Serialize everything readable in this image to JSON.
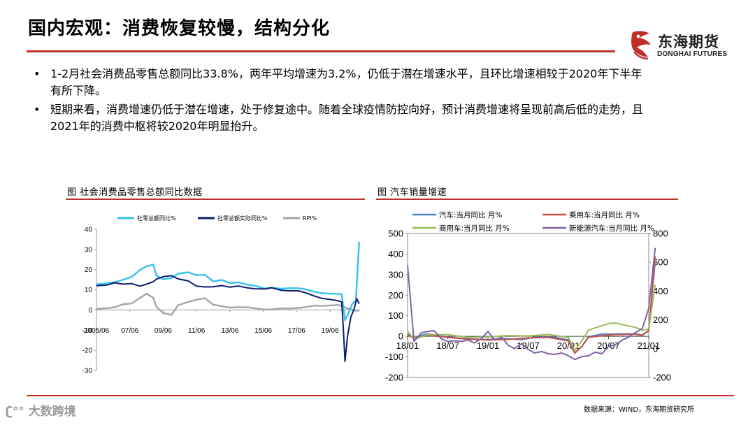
{
  "header": {
    "title": "国内宏观：消费恢复较慢，结构分化",
    "logo_cn": "东海期货",
    "logo_en": "DONGHAI FUTURES"
  },
  "bullets": [
    "1-2月社会消费品零售总额同比33.8%，两年平均增速为3.2%，仍低于潜在增速水平，且环比增速相较于2020年下半年有所下降。",
    "短期来看，消费增速仍低于潜在增速，处于修复途中。随着全球疫情防控向好，预计消费增速将呈现前高后低的走势，且2021年的消费中枢将较2020年明显抬升。"
  ],
  "footer": {
    "source": "数据来源：WIND，东海期货研究所",
    "watermark": "大数跨境"
  },
  "colors": {
    "accent_red": "#c0302a",
    "retail_nominal": "#33c2f0",
    "retail_real": "#0d1d6e",
    "rpi": "#a5a5a5",
    "auto": "#4f81bd",
    "passenger": "#c0504d",
    "commercial": "#9bbb59",
    "nev": "#8064a2"
  },
  "chart_data": [
    {
      "type": "line",
      "fig_title": "图    社会消费品零售总额同比数据",
      "title": "",
      "xlabel": "",
      "ylabel": "",
      "ylim": [
        -30,
        40
      ],
      "yticks": [
        40,
        30,
        20,
        10,
        0,
        -10,
        -20,
        -30
      ],
      "tick_labels_x": [
        "2005/06",
        "07/06",
        "09/06",
        "11/06",
        "13/06",
        "15/06",
        "17/06",
        "19/06"
      ],
      "tick_labels_y": [
        "40",
        "30",
        "20",
        "10",
        "0",
        "-10",
        "-20",
        "-30"
      ],
      "x_start": 2005.4,
      "x_end": 2021.2,
      "legend_position": "top",
      "series": [
        {
          "name": "社零总额同比%",
          "color_key": "retail_nominal",
          "points": [
            [
              2005.4,
              12.7
            ],
            [
              2006.0,
              13.2
            ],
            [
              2006.5,
              13.8
            ],
            [
              2007.0,
              15.0
            ],
            [
              2007.5,
              16.3
            ],
            [
              2008.0,
              19.8
            ],
            [
              2008.4,
              21.6
            ],
            [
              2008.8,
              22.5
            ],
            [
              2009.0,
              17.0
            ],
            [
              2009.4,
              15.2
            ],
            [
              2009.9,
              15.8
            ],
            [
              2010.3,
              18.0
            ],
            [
              2010.9,
              18.7
            ],
            [
              2011.4,
              17.2
            ],
            [
              2011.9,
              17.4
            ],
            [
              2012.4,
              14.1
            ],
            [
              2012.9,
              14.9
            ],
            [
              2013.4,
              13.3
            ],
            [
              2013.9,
              13.7
            ],
            [
              2014.5,
              12.4
            ],
            [
              2014.9,
              12.0
            ],
            [
              2015.5,
              10.6
            ],
            [
              2015.9,
              11.1
            ],
            [
              2016.5,
              10.5
            ],
            [
              2016.9,
              10.8
            ],
            [
              2017.5,
              10.8
            ],
            [
              2017.9,
              10.3
            ],
            [
              2018.5,
              9.0
            ],
            [
              2018.9,
              8.4
            ],
            [
              2019.5,
              8.0
            ],
            [
              2019.9,
              8.0
            ],
            [
              2020.1,
              7.8
            ],
            [
              2020.3,
              -5.0
            ],
            [
              2020.5,
              -1.8
            ],
            [
              2020.75,
              3.3
            ],
            [
              2020.95,
              4.6
            ],
            [
              2021.15,
              33.8
            ]
          ]
        },
        {
          "name": "社零总额实际同比%",
          "color_key": "retail_real",
          "points": [
            [
              2005.4,
              12.0
            ],
            [
              2006.0,
              12.3
            ],
            [
              2006.5,
              13.5
            ],
            [
              2007.0,
              12.8
            ],
            [
              2007.5,
              13.1
            ],
            [
              2008.0,
              11.8
            ],
            [
              2008.4,
              12.8
            ],
            [
              2008.8,
              14.0
            ],
            [
              2009.0,
              15.3
            ],
            [
              2009.4,
              16.5
            ],
            [
              2009.9,
              17.0
            ],
            [
              2010.3,
              15.4
            ],
            [
              2010.9,
              14.4
            ],
            [
              2011.4,
              11.8
            ],
            [
              2011.9,
              11.4
            ],
            [
              2012.4,
              11.5
            ],
            [
              2012.9,
              12.1
            ],
            [
              2013.4,
              11.3
            ],
            [
              2013.9,
              11.9
            ],
            [
              2014.5,
              10.9
            ],
            [
              2014.9,
              10.5
            ],
            [
              2015.5,
              10.4
            ],
            [
              2015.9,
              11.0
            ],
            [
              2016.5,
              9.7
            ],
            [
              2016.9,
              9.5
            ],
            [
              2017.5,
              9.5
            ],
            [
              2017.9,
              8.6
            ],
            [
              2018.5,
              6.8
            ],
            [
              2018.9,
              5.8
            ],
            [
              2019.5,
              5.1
            ],
            [
              2019.9,
              4.5
            ],
            [
              2020.1,
              4.0
            ],
            [
              2020.2,
              -9.0
            ],
            [
              2020.3,
              -25.5
            ],
            [
              2020.45,
              -13.0
            ],
            [
              2020.65,
              -3.5
            ],
            [
              2020.85,
              0.5
            ],
            [
              2021.0,
              5.6
            ],
            [
              2021.15,
              3.1
            ]
          ]
        },
        {
          "name": "RPI%",
          "color_key": "rpi",
          "points": [
            [
              2005.4,
              0.6
            ],
            [
              2006.0,
              0.8
            ],
            [
              2006.5,
              1.4
            ],
            [
              2007.0,
              2.8
            ],
            [
              2007.5,
              3.2
            ],
            [
              2008.0,
              5.9
            ],
            [
              2008.4,
              8.1
            ],
            [
              2008.8,
              6.1
            ],
            [
              2009.0,
              1.5
            ],
            [
              2009.4,
              -1.5
            ],
            [
              2009.9,
              -2.4
            ],
            [
              2010.3,
              2.4
            ],
            [
              2010.9,
              4.0
            ],
            [
              2011.4,
              5.1
            ],
            [
              2011.9,
              5.9
            ],
            [
              2012.4,
              2.6
            ],
            [
              2012.9,
              1.9
            ],
            [
              2013.4,
              1.2
            ],
            [
              2013.9,
              1.4
            ],
            [
              2014.5,
              1.3
            ],
            [
              2014.9,
              0.8
            ],
            [
              2015.5,
              0.2
            ],
            [
              2015.9,
              0.3
            ],
            [
              2016.5,
              0.8
            ],
            [
              2016.9,
              0.7
            ],
            [
              2017.5,
              1.0
            ],
            [
              2017.9,
              1.4
            ],
            [
              2018.5,
              2.2
            ],
            [
              2018.9,
              2.0
            ],
            [
              2019.5,
              2.3
            ],
            [
              2019.9,
              2.5
            ],
            [
              2020.1,
              2.0
            ],
            [
              2020.4,
              0.9
            ],
            [
              2020.7,
              0.2
            ],
            [
              2020.95,
              -0.4
            ],
            [
              2021.15,
              -0.3
            ]
          ]
        }
      ]
    },
    {
      "type": "line",
      "fig_title": "图    汽车销量增速",
      "title": "",
      "xlabel": "",
      "ylabel": "",
      "ylim": [
        -200,
        500
      ],
      "y2lim": [
        -200,
        800
      ],
      "yticks": [
        500,
        400,
        300,
        200,
        100,
        0,
        -100,
        -200
      ],
      "y2ticks": [
        800,
        600,
        400,
        200,
        0,
        -200
      ],
      "tick_labels_x": [
        "18/01",
        "18/07",
        "19/01",
        "19/07",
        "20/01",
        "20/07",
        "21/01"
      ],
      "tick_labels_y": [
        "500",
        "400",
        "300",
        "200",
        "100",
        "0",
        "-100",
        "-200"
      ],
      "tick_labels_y2": [
        "800",
        "600",
        "400",
        "200",
        "0",
        "-200"
      ],
      "x_start": 2018.0,
      "x_end": 2021.0,
      "legend_position": "top",
      "series": [
        {
          "name": "汽车:当月同比 月%",
          "color_key": "auto",
          "axis": "left",
          "points": [
            [
              2018.0,
              11
            ],
            [
              2018.08,
              -12
            ],
            [
              2018.17,
              5
            ],
            [
              2018.25,
              12
            ],
            [
              2018.5,
              -4
            ],
            [
              2018.75,
              -12
            ],
            [
              2019.0,
              -16
            ],
            [
              2019.17,
              -10
            ],
            [
              2019.42,
              -16
            ],
            [
              2019.58,
              -4
            ],
            [
              2019.83,
              -4
            ],
            [
              2020.0,
              -18
            ],
            [
              2020.08,
              -80
            ],
            [
              2020.17,
              -48
            ],
            [
              2020.25,
              -2
            ],
            [
              2020.42,
              11
            ],
            [
              2020.58,
              11
            ],
            [
              2020.83,
              12
            ],
            [
              2020.92,
              6
            ],
            [
              2021.0,
              29
            ],
            [
              2021.08,
              365
            ]
          ]
        },
        {
          "name": "乘用车:当月同比 月%",
          "color_key": "passenger",
          "axis": "left",
          "points": [
            [
              2018.0,
              7
            ],
            [
              2018.08,
              -10
            ],
            [
              2018.25,
              5
            ],
            [
              2018.5,
              -5
            ],
            [
              2018.75,
              -14
            ],
            [
              2019.0,
              -18
            ],
            [
              2019.25,
              -15
            ],
            [
              2019.5,
              -8
            ],
            [
              2019.75,
              -5
            ],
            [
              2020.0,
              -22
            ],
            [
              2020.08,
              -82
            ],
            [
              2020.17,
              -48
            ],
            [
              2020.25,
              -5
            ],
            [
              2020.42,
              3
            ],
            [
              2020.58,
              8
            ],
            [
              2020.83,
              10
            ],
            [
              2020.92,
              5
            ],
            [
              2021.0,
              27
            ],
            [
              2021.08,
              390
            ]
          ]
        },
        {
          "name": "商用车:当月同比 月%",
          "color_key": "commercial",
          "axis": "left",
          "points": [
            [
              2018.0,
              25
            ],
            [
              2018.08,
              -15
            ],
            [
              2018.25,
              8
            ],
            [
              2018.5,
              8
            ],
            [
              2018.75,
              -5
            ],
            [
              2019.0,
              -3
            ],
            [
              2019.25,
              4
            ],
            [
              2019.5,
              2
            ],
            [
              2019.75,
              9
            ],
            [
              2020.0,
              -5
            ],
            [
              2020.08,
              -70
            ],
            [
              2020.17,
              -20
            ],
            [
              2020.25,
              30
            ],
            [
              2020.42,
              52
            ],
            [
              2020.5,
              62
            ],
            [
              2020.58,
              65
            ],
            [
              2020.75,
              50
            ],
            [
              2020.83,
              44
            ],
            [
              2020.92,
              30
            ],
            [
              2021.0,
              35
            ],
            [
              2021.08,
              250
            ]
          ]
        },
        {
          "name": "新能源汽车:当月同比 月%",
          "color_key": "nev",
          "axis": "right",
          "points": [
            [
              2018.0,
              580
            ],
            [
              2018.08,
              50
            ],
            [
              2018.17,
              110
            ],
            [
              2018.25,
              120
            ],
            [
              2018.33,
              125
            ],
            [
              2018.42,
              70
            ],
            [
              2018.5,
              50
            ],
            [
              2018.58,
              55
            ],
            [
              2018.67,
              50
            ],
            [
              2018.75,
              60
            ],
            [
              2018.83,
              40
            ],
            [
              2018.92,
              70
            ],
            [
              2019.0,
              120
            ],
            [
              2019.08,
              60
            ],
            [
              2019.17,
              80
            ],
            [
              2019.25,
              25
            ],
            [
              2019.33,
              0
            ],
            [
              2019.42,
              35
            ],
            [
              2019.5,
              -5
            ],
            [
              2019.58,
              -30
            ],
            [
              2019.67,
              -20
            ],
            [
              2019.75,
              -35
            ],
            [
              2019.83,
              -40
            ],
            [
              2019.92,
              -30
            ],
            [
              2020.0,
              -50
            ],
            [
              2020.08,
              -75
            ],
            [
              2020.17,
              -55
            ],
            [
              2020.25,
              -50
            ],
            [
              2020.33,
              -25
            ],
            [
              2020.42,
              -35
            ],
            [
              2020.5,
              15
            ],
            [
              2020.58,
              25
            ],
            [
              2020.67,
              60
            ],
            [
              2020.75,
              80
            ],
            [
              2020.83,
              110
            ],
            [
              2020.92,
              140
            ],
            [
              2021.0,
              280
            ],
            [
              2021.08,
              700
            ]
          ]
        }
      ]
    }
  ]
}
